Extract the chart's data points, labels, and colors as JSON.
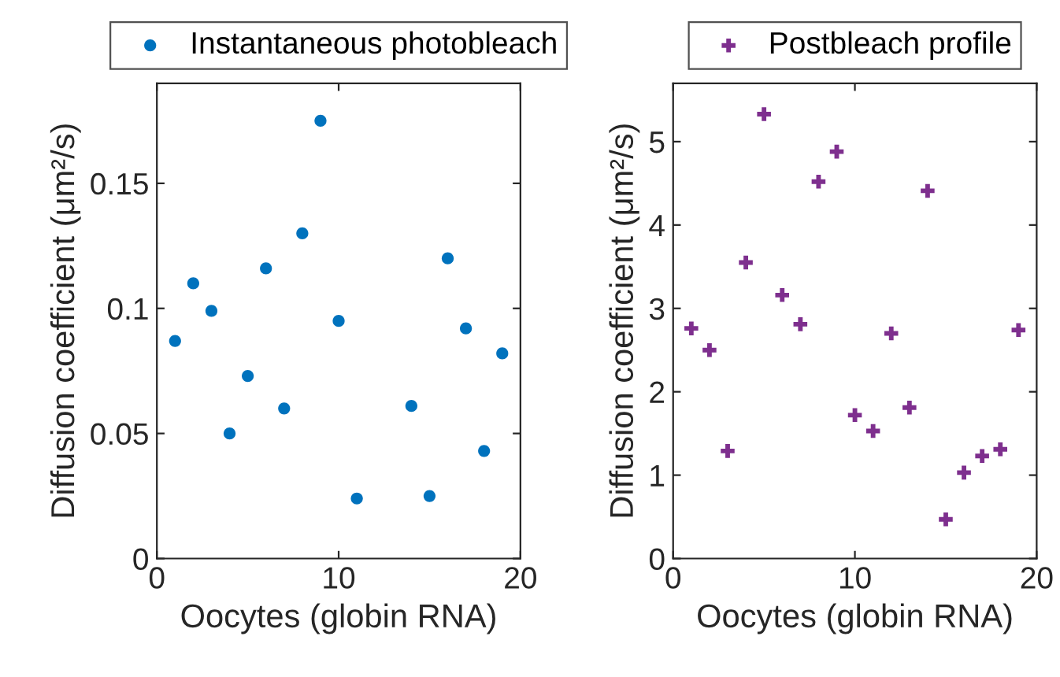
{
  "chart_data": [
    {
      "type": "scatter",
      "xlabel": "Oocytes (globin RNA)",
      "ylabel": "Diffusion coefficient (μm²/s)",
      "xlim": [
        0,
        20
      ],
      "xticks": [
        0,
        10,
        20
      ],
      "ylim": [
        0,
        0.19
      ],
      "yticks": [
        0,
        0.05,
        0.1,
        0.15
      ],
      "legend": "top",
      "marker": "circle",
      "grid": false,
      "series": [
        {
          "name": "Instantaneous photobleach",
          "color": "#0072bd",
          "x": [
            1,
            2,
            3,
            4,
            5,
            6,
            7,
            8,
            9,
            10,
            11,
            14,
            15,
            16,
            17,
            18,
            19
          ],
          "values": [
            0.087,
            0.11,
            0.099,
            0.05,
            0.073,
            0.116,
            0.06,
            0.13,
            0.175,
            0.095,
            0.024,
            0.061,
            0.025,
            0.12,
            0.092,
            0.043,
            0.082
          ]
        }
      ]
    },
    {
      "type": "scatter",
      "xlabel": "Oocytes (globin RNA)",
      "ylabel": "Diffusion coefficient (μm²/s)",
      "xlim": [
        0,
        20
      ],
      "xticks": [
        0,
        10,
        20
      ],
      "ylim": [
        0,
        5.7
      ],
      "yticks": [
        0,
        1,
        2,
        3,
        4,
        5
      ],
      "legend": "top",
      "marker": "cross",
      "grid": false,
      "series": [
        {
          "name": "Postbleach profile",
          "color": "#7e2f8e",
          "x": [
            1,
            2,
            3,
            4,
            5,
            6,
            7,
            8,
            9,
            10,
            11,
            12,
            13,
            14,
            15,
            16,
            17,
            18,
            19
          ],
          "values": [
            2.76,
            2.5,
            1.29,
            3.55,
            5.33,
            3.16,
            2.81,
            4.52,
            4.88,
            1.72,
            1.53,
            2.7,
            1.81,
            4.41,
            0.47,
            1.03,
            1.23,
            1.31,
            2.74
          ]
        }
      ]
    }
  ]
}
